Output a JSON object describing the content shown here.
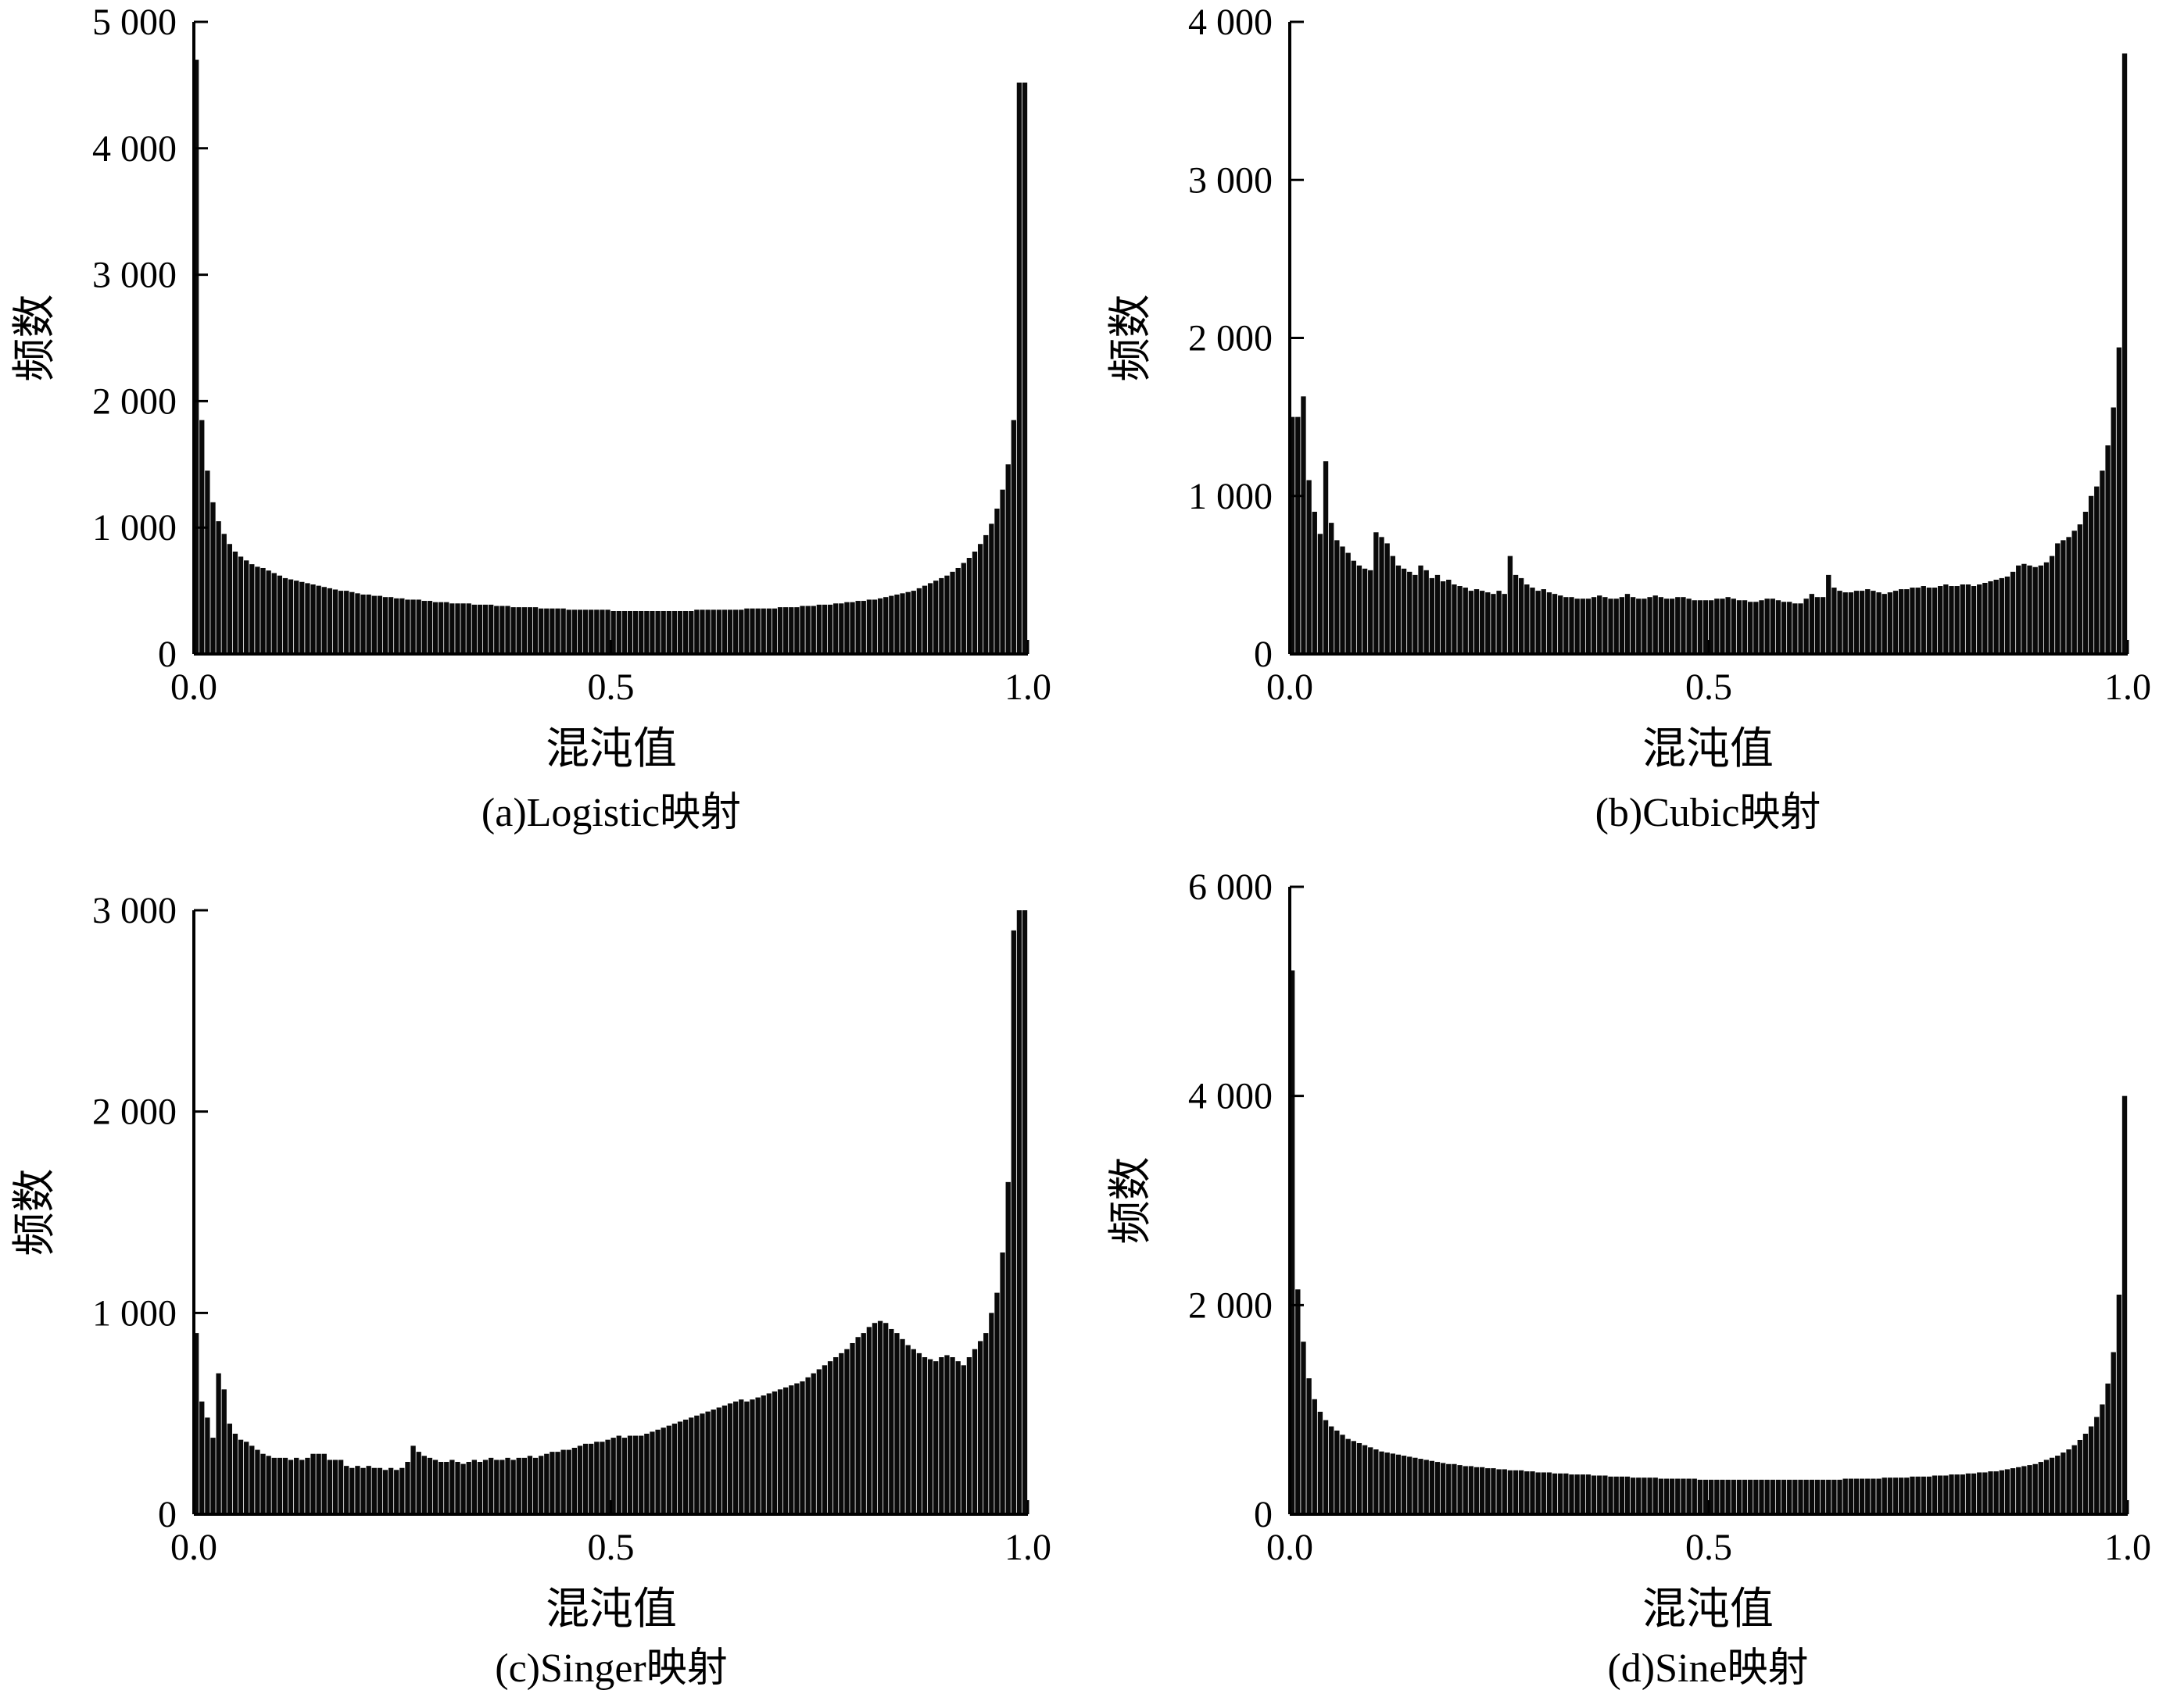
{
  "figure": {
    "background": "#ffffff",
    "bar_color": "#0a0a0a"
  },
  "chart_data": [
    {
      "type": "bar",
      "caption": "(a)Logistic映射",
      "xlabel": "混沌值",
      "ylabel": "频数",
      "xlim": [
        0,
        1
      ],
      "ylim": [
        0,
        5000
      ],
      "xticks": [
        0,
        0.5,
        1
      ],
      "xtick_labels": [
        "0.0",
        "0.5",
        "1.0"
      ],
      "yticks": [
        0,
        1000,
        2000,
        3000,
        4000,
        5000
      ],
      "ytick_labels": [
        "0",
        "1 000",
        "2 000",
        "3 000",
        "4 000",
        "5 000"
      ],
      "grid": false,
      "bins": 150,
      "values": [
        4700,
        1850,
        1450,
        1200,
        1050,
        950,
        870,
        810,
        770,
        740,
        710,
        690,
        680,
        660,
        640,
        620,
        600,
        590,
        580,
        570,
        560,
        550,
        540,
        530,
        520,
        510,
        500,
        500,
        490,
        480,
        470,
        470,
        460,
        460,
        450,
        450,
        440,
        440,
        430,
        430,
        430,
        420,
        420,
        410,
        410,
        410,
        400,
        400,
        400,
        400,
        390,
        390,
        390,
        390,
        380,
        380,
        380,
        370,
        370,
        370,
        370,
        370,
        360,
        360,
        360,
        360,
        360,
        350,
        350,
        350,
        350,
        350,
        350,
        350,
        350,
        340,
        340,
        340,
        340,
        340,
        340,
        340,
        340,
        340,
        340,
        340,
        340,
        340,
        340,
        340,
        350,
        350,
        350,
        350,
        350,
        350,
        350,
        350,
        350,
        360,
        360,
        360,
        360,
        360,
        360,
        370,
        370,
        370,
        370,
        380,
        380,
        380,
        390,
        390,
        390,
        400,
        400,
        410,
        410,
        420,
        420,
        430,
        430,
        440,
        450,
        460,
        470,
        480,
        490,
        500,
        520,
        540,
        560,
        580,
        600,
        620,
        650,
        680,
        720,
        760,
        810,
        870,
        940,
        1030,
        1150,
        1300,
        1500,
        1850,
        4520,
        4520
      ],
      "notes_hidden": ""
    },
    {
      "type": "bar",
      "caption": "(b)Cubic映射",
      "xlabel": "混沌值",
      "ylabel": "频数",
      "xlim": [
        0,
        1
      ],
      "ylim": [
        0,
        4000
      ],
      "xticks": [
        0,
        0.5,
        1
      ],
      "xtick_labels": [
        "0.0",
        "0.5",
        "1.0"
      ],
      "yticks": [
        0,
        1000,
        2000,
        3000,
        4000
      ],
      "ytick_labels": [
        "0",
        "1 000",
        "2 000",
        "3 000",
        "4 000"
      ],
      "grid": false,
      "bins": 150,
      "values": [
        1500,
        1500,
        1630,
        1100,
        900,
        760,
        1220,
        830,
        720,
        680,
        640,
        590,
        560,
        540,
        530,
        770,
        740,
        700,
        620,
        560,
        540,
        520,
        500,
        560,
        530,
        480,
        500,
        460,
        470,
        440,
        430,
        420,
        400,
        410,
        400,
        390,
        380,
        400,
        380,
        620,
        500,
        480,
        440,
        420,
        400,
        410,
        390,
        380,
        370,
        360,
        360,
        350,
        350,
        350,
        360,
        370,
        360,
        350,
        350,
        360,
        380,
        360,
        350,
        350,
        360,
        370,
        360,
        350,
        350,
        360,
        360,
        350,
        340,
        340,
        340,
        340,
        350,
        350,
        360,
        350,
        340,
        340,
        330,
        330,
        340,
        350,
        350,
        340,
        330,
        330,
        320,
        320,
        350,
        380,
        360,
        360,
        500,
        420,
        400,
        390,
        390,
        400,
        400,
        410,
        400,
        390,
        380,
        390,
        400,
        410,
        410,
        420,
        420,
        430,
        420,
        420,
        430,
        440,
        430,
        430,
        440,
        440,
        430,
        440,
        450,
        460,
        470,
        480,
        490,
        520,
        560,
        570,
        560,
        550,
        560,
        580,
        620,
        700,
        720,
        740,
        780,
        820,
        900,
        1000,
        1060,
        1160,
        1320,
        1560,
        1940,
        3800
      ],
      "notes_hidden": ""
    },
    {
      "type": "bar",
      "caption": "(c)Singer映射",
      "xlabel": "混沌值",
      "ylabel": "频数",
      "xlim": [
        0,
        1
      ],
      "ylim": [
        0,
        3000
      ],
      "xticks": [
        0,
        0.5,
        1
      ],
      "xtick_labels": [
        "0.0",
        "0.5",
        "1.0"
      ],
      "yticks": [
        0,
        1000,
        2000,
        3000
      ],
      "ytick_labels": [
        "0",
        "1 000",
        "2 000",
        "3 000"
      ],
      "grid": false,
      "bins": 150,
      "values": [
        900,
        560,
        480,
        380,
        700,
        620,
        450,
        400,
        370,
        360,
        340,
        320,
        300,
        290,
        280,
        280,
        280,
        270,
        280,
        270,
        280,
        300,
        300,
        300,
        270,
        270,
        270,
        240,
        230,
        240,
        230,
        240,
        230,
        230,
        220,
        230,
        220,
        230,
        260,
        340,
        310,
        290,
        280,
        270,
        260,
        260,
        270,
        260,
        250,
        260,
        270,
        260,
        270,
        280,
        270,
        270,
        280,
        270,
        280,
        280,
        290,
        280,
        290,
        300,
        310,
        310,
        320,
        320,
        330,
        340,
        350,
        350,
        360,
        360,
        370,
        380,
        390,
        380,
        390,
        390,
        390,
        400,
        410,
        420,
        430,
        440,
        450,
        460,
        470,
        480,
        490,
        500,
        510,
        520,
        530,
        540,
        550,
        560,
        570,
        560,
        570,
        580,
        590,
        600,
        610,
        620,
        630,
        640,
        650,
        660,
        680,
        700,
        720,
        740,
        760,
        780,
        800,
        820,
        850,
        880,
        900,
        930,
        950,
        960,
        950,
        920,
        900,
        870,
        840,
        820,
        800,
        780,
        770,
        760,
        780,
        790,
        780,
        760,
        740,
        780,
        820,
        860,
        900,
        1000,
        1100,
        1300,
        1650,
        2900,
        3150,
        3150
      ],
      "notes_hidden": ""
    },
    {
      "type": "bar",
      "caption": "(d)Sine映射",
      "xlabel": "混沌值",
      "ylabel": "频数",
      "xlim": [
        0,
        1
      ],
      "ylim": [
        0,
        6000
      ],
      "xticks": [
        0,
        0.5,
        1
      ],
      "xtick_labels": [
        "0.0",
        "0.5",
        "1.0"
      ],
      "yticks": [
        0,
        2000,
        4000,
        6000
      ],
      "ytick_labels": [
        "0",
        "2 000",
        "4 000",
        "6 000"
      ],
      "grid": false,
      "bins": 150,
      "values": [
        5200,
        2150,
        1650,
        1300,
        1100,
        980,
        900,
        840,
        800,
        760,
        720,
        700,
        680,
        660,
        640,
        620,
        600,
        590,
        580,
        570,
        560,
        550,
        540,
        530,
        520,
        510,
        500,
        490,
        480,
        480,
        470,
        460,
        460,
        450,
        450,
        440,
        440,
        430,
        430,
        420,
        420,
        420,
        410,
        410,
        400,
        400,
        400,
        390,
        390,
        390,
        380,
        380,
        380,
        380,
        370,
        370,
        370,
        360,
        360,
        360,
        360,
        350,
        350,
        350,
        350,
        350,
        340,
        340,
        340,
        340,
        340,
        340,
        340,
        330,
        330,
        330,
        330,
        330,
        330,
        330,
        330,
        330,
        330,
        330,
        330,
        330,
        330,
        330,
        330,
        330,
        330,
        330,
        330,
        330,
        330,
        330,
        330,
        330,
        330,
        340,
        340,
        340,
        340,
        340,
        340,
        340,
        350,
        350,
        350,
        350,
        350,
        360,
        360,
        360,
        360,
        370,
        370,
        370,
        380,
        380,
        380,
        390,
        390,
        400,
        400,
        410,
        410,
        420,
        430,
        440,
        450,
        460,
        470,
        480,
        500,
        520,
        540,
        560,
        590,
        620,
        660,
        710,
        770,
        840,
        930,
        1050,
        1250,
        1550,
        2100,
        4000
      ],
      "notes_hidden": ""
    }
  ]
}
